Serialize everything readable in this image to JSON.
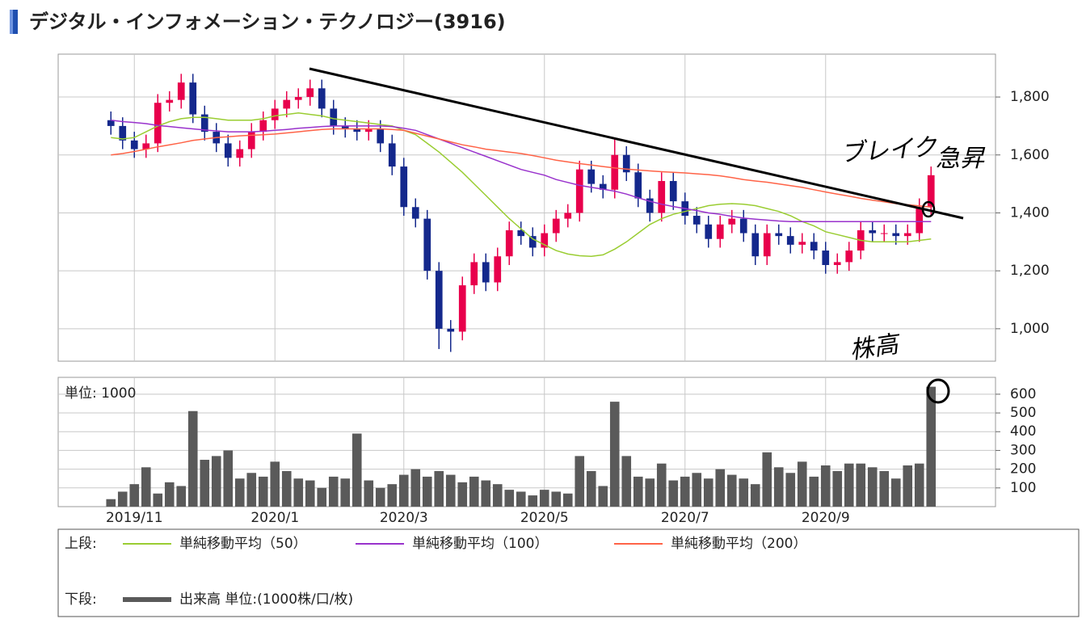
{
  "chart_data": [
    {
      "type": "candlestick",
      "title": "デジタル・インフォメーション・テクノロジー(3916)",
      "legend_label": "上段:",
      "up_color": "#e8004c",
      "down_color": "#14288c",
      "open": [
        null,
        null,
        null,
        null,
        1720,
        1700,
        1650,
        1620,
        1640,
        1780,
        1790,
        1850,
        1740,
        1680,
        1640,
        1590,
        1620,
        1680,
        1720,
        1760,
        1790,
        1800,
        1830,
        1760,
        1700,
        1690,
        1680,
        1690,
        1640,
        1560,
        1420,
        1380,
        1200,
        1000,
        990,
        1150,
        1230,
        1160,
        1250,
        1340,
        1320,
        1280,
        1330,
        1380,
        1400,
        1550,
        1500,
        1480,
        1600,
        1540,
        1450,
        1400,
        1510,
        1440,
        1390,
        1360,
        1310,
        1360,
        1380,
        1330,
        1250,
        1330,
        1320,
        1290,
        1300,
        1270,
        1220,
        1230,
        1270,
        1340,
        1330,
        1330,
        1320,
        1330,
        1420,
        null,
        null,
        null,
        null,
        null
      ],
      "high": [
        null,
        null,
        null,
        null,
        1750,
        1730,
        1680,
        1670,
        1810,
        1820,
        1880,
        1880,
        1770,
        1710,
        1670,
        1650,
        1710,
        1750,
        1790,
        1820,
        1830,
        1860,
        1860,
        1790,
        1730,
        1720,
        1720,
        1720,
        1670,
        1590,
        1450,
        1410,
        1230,
        1030,
        1180,
        1260,
        1260,
        1280,
        1370,
        1370,
        1350,
        1360,
        1410,
        1430,
        1580,
        1580,
        1530,
        1660,
        1630,
        1570,
        1480,
        1540,
        1540,
        1470,
        1420,
        1390,
        1390,
        1410,
        1410,
        1360,
        1360,
        1360,
        1350,
        1330,
        1330,
        1300,
        1260,
        1300,
        1370,
        1370,
        1360,
        1360,
        1360,
        1450,
        1560,
        null,
        null,
        null,
        null,
        null
      ],
      "low": [
        null,
        null,
        null,
        null,
        1670,
        1620,
        1590,
        1590,
        1610,
        1750,
        1760,
        1710,
        1650,
        1610,
        1560,
        1560,
        1590,
        1650,
        1690,
        1730,
        1760,
        1770,
        1730,
        1670,
        1660,
        1650,
        1650,
        1610,
        1530,
        1390,
        1350,
        1170,
        930,
        920,
        960,
        1120,
        1130,
        1130,
        1220,
        1290,
        1250,
        1250,
        1300,
        1350,
        1370,
        1470,
        1450,
        1450,
        1510,
        1420,
        1370,
        1370,
        1410,
        1360,
        1330,
        1280,
        1280,
        1330,
        1300,
        1220,
        1220,
        1290,
        1260,
        1260,
        1240,
        1190,
        1190,
        1200,
        1240,
        1300,
        1300,
        1290,
        1290,
        1300,
        1390,
        null,
        null,
        null,
        null,
        null
      ],
      "close": [
        null,
        null,
        null,
        null,
        1700,
        1650,
        1620,
        1640,
        1780,
        1790,
        1850,
        1740,
        1680,
        1640,
        1590,
        1620,
        1680,
        1720,
        1760,
        1790,
        1800,
        1830,
        1760,
        1700,
        1690,
        1680,
        1690,
        1640,
        1560,
        1420,
        1380,
        1200,
        1000,
        990,
        1150,
        1230,
        1160,
        1250,
        1340,
        1320,
        1280,
        1330,
        1380,
        1400,
        1550,
        1500,
        1480,
        1600,
        1540,
        1450,
        1400,
        1510,
        1440,
        1390,
        1360,
        1310,
        1360,
        1380,
        1330,
        1250,
        1330,
        1320,
        1290,
        1300,
        1270,
        1220,
        1230,
        1270,
        1340,
        1330,
        1330,
        1320,
        1330,
        1420,
        1530,
        null,
        null,
        null,
        null,
        null
      ],
      "series": [
        {
          "name": "単純移動平均（50）",
          "color": "#9acd32",
          "values": [
            null,
            null,
            null,
            null,
            1660,
            1655,
            1660,
            1680,
            1700,
            1715,
            1725,
            1730,
            1730,
            1725,
            1720,
            1720,
            1720,
            1725,
            1735,
            1740,
            1745,
            1740,
            1735,
            1725,
            1720,
            1715,
            1710,
            1705,
            1700,
            1685,
            1670,
            1640,
            1610,
            1575,
            1540,
            1500,
            1460,
            1420,
            1380,
            1345,
            1310,
            1290,
            1270,
            1258,
            1252,
            1250,
            1255,
            1275,
            1300,
            1330,
            1360,
            1380,
            1395,
            1405,
            1415,
            1425,
            1430,
            1432,
            1430,
            1425,
            1415,
            1405,
            1390,
            1370,
            1355,
            1335,
            1325,
            1315,
            1305,
            1300,
            1300,
            1300,
            1300,
            1305,
            1310,
            null,
            null,
            null,
            null,
            null
          ]
        },
        {
          "name": "単純移動平均（100）",
          "color": "#9932cc",
          "values": [
            null,
            null,
            null,
            null,
            1720,
            1715,
            1712,
            1708,
            1702,
            1698,
            1694,
            1690,
            1686,
            1683,
            1680,
            1680,
            1680,
            1682,
            1685,
            1688,
            1692,
            1695,
            1698,
            1700,
            1700,
            1700,
            1700,
            1700,
            1698,
            1692,
            1685,
            1670,
            1655,
            1640,
            1625,
            1610,
            1595,
            1580,
            1565,
            1550,
            1540,
            1530,
            1515,
            1505,
            1495,
            1488,
            1482,
            1475,
            1465,
            1452,
            1440,
            1430,
            1422,
            1415,
            1408,
            1400,
            1395,
            1388,
            1382,
            1378,
            1375,
            1372,
            1370,
            1370,
            1370,
            1370,
            1370,
            1370,
            1370,
            1370,
            1370,
            1370,
            1370,
            1370,
            1370,
            null,
            null,
            null,
            null,
            null
          ]
        },
        {
          "name": "単純移動平均（200）",
          "color": "#ff6347",
          "values": [
            null,
            null,
            null,
            null,
            1600,
            1605,
            1612,
            1620,
            1628,
            1635,
            1642,
            1650,
            1655,
            1660,
            1663,
            1666,
            1668,
            1670,
            1672,
            1676,
            1680,
            1684,
            1688,
            1690,
            1690,
            1690,
            1690,
            1690,
            1688,
            1685,
            1675,
            1665,
            1655,
            1645,
            1635,
            1628,
            1620,
            1615,
            1610,
            1605,
            1598,
            1590,
            1582,
            1576,
            1570,
            1565,
            1560,
            1555,
            1551,
            1548,
            1545,
            1542,
            1540,
            1538,
            1535,
            1532,
            1528,
            1522,
            1515,
            1510,
            1506,
            1500,
            1494,
            1488,
            1480,
            1472,
            1465,
            1458,
            1450,
            1444,
            1438,
            1432,
            1428,
            1424,
            1420,
            null,
            null,
            null,
            null,
            null
          ]
        }
      ],
      "ylim": [
        888,
        1948
      ],
      "yticks": [
        {
          "value": 1000,
          "label": "1,000"
        },
        {
          "value": 1200,
          "label": "1,200"
        },
        {
          "value": 1400,
          "label": "1,400"
        },
        {
          "value": 1600,
          "label": "1,600"
        },
        {
          "value": 1800,
          "label": "1,800"
        }
      ],
      "grid": true,
      "annotations": [
        "ブレイク",
        "急昇",
        "株高"
      ]
    },
    {
      "type": "bar",
      "legend_label": "下段:",
      "unit_label": "単位: 1000",
      "categories": [
        null,
        null,
        null,
        null,
        null,
        null,
        "2019/11",
        null,
        null,
        null,
        null,
        null,
        null,
        null,
        null,
        null,
        null,
        null,
        "2020/1",
        null,
        null,
        null,
        null,
        null,
        null,
        null,
        null,
        null,
        null,
        "2020/3",
        null,
        null,
        null,
        null,
        null,
        null,
        null,
        null,
        null,
        null,
        null,
        "2020/5",
        null,
        null,
        null,
        null,
        null,
        null,
        null,
        null,
        null,
        null,
        null,
        "2020/7",
        null,
        null,
        null,
        null,
        null,
        null,
        null,
        null,
        null,
        null,
        null,
        "2020/9",
        null,
        null,
        null,
        null,
        null,
        null,
        null,
        null,
        null,
        null,
        null,
        null,
        null,
        null
      ],
      "series": [
        {
          "name": "出来高 単位:(1000株/口/枚)",
          "color": "#5a5a5a",
          "values": [
            null,
            null,
            null,
            null,
            40,
            80,
            120,
            210,
            70,
            130,
            110,
            510,
            250,
            270,
            300,
            150,
            180,
            160,
            240,
            190,
            150,
            140,
            100,
            160,
            150,
            390,
            140,
            100,
            120,
            170,
            200,
            160,
            190,
            170,
            130,
            160,
            140,
            120,
            90,
            80,
            60,
            90,
            80,
            70,
            270,
            190,
            110,
            560,
            270,
            160,
            150,
            230,
            140,
            160,
            180,
            150,
            200,
            170,
            150,
            120,
            290,
            210,
            180,
            240,
            160,
            220,
            190,
            230,
            230,
            210,
            190,
            150,
            220,
            230,
            640,
            null,
            null,
            null,
            null,
            null
          ]
        }
      ],
      "ylim": [
        0,
        690
      ],
      "yticks": [
        100,
        200,
        300,
        400,
        500,
        600
      ],
      "grid": true
    }
  ]
}
